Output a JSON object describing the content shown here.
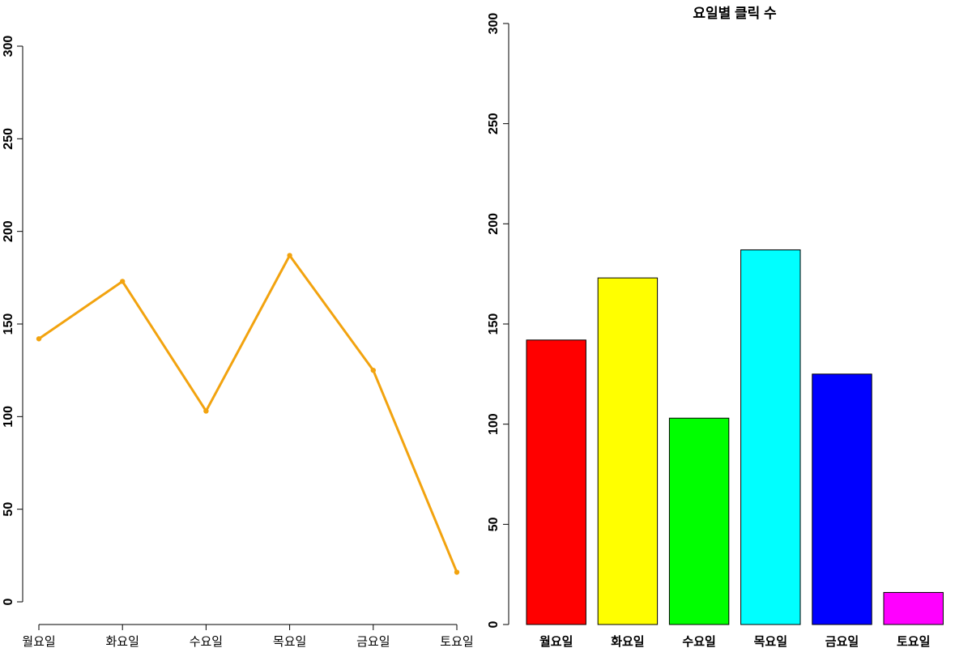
{
  "chart_data": [
    {
      "type": "line",
      "categories": [
        "월요일",
        "화요일",
        "수요일",
        "목요일",
        "금요일",
        "토요일"
      ],
      "values": [
        142,
        173,
        103,
        187,
        125,
        16
      ],
      "ylim": [
        0,
        300
      ],
      "yticks": [
        0,
        50,
        100,
        150,
        200,
        250,
        300
      ],
      "line_color": "#F2A30F",
      "markers": true,
      "grid": false
    },
    {
      "type": "bar",
      "title": "요일별 클릭 수",
      "categories": [
        "월요일",
        "화요일",
        "수요일",
        "목요일",
        "금요일",
        "토요일"
      ],
      "values": [
        142,
        173,
        103,
        187,
        125,
        16
      ],
      "colors": [
        "#FF0000",
        "#FFFF00",
        "#00FF00",
        "#00FFFF",
        "#0000FF",
        "#FF00FF"
      ],
      "ylim": [
        0,
        300
      ],
      "yticks": [
        0,
        50,
        100,
        150,
        200,
        250,
        300
      ],
      "grid": false
    }
  ]
}
